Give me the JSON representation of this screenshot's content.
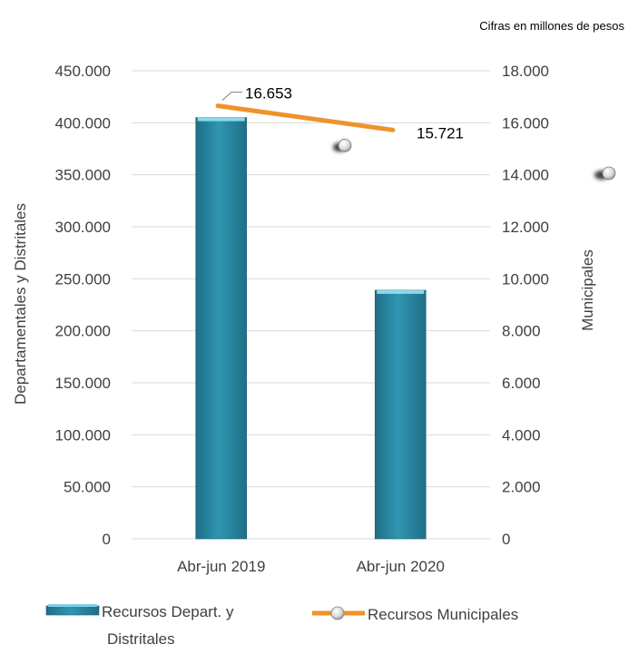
{
  "note": "Cifras en millones de pesos",
  "chart_data": {
    "type": "bar",
    "categories": [
      "Abr-jun 2019",
      "Abr-jun 2020"
    ],
    "series": [
      {
        "name": "Recursos Depart. y Distritales",
        "type": "bar",
        "axis": "left",
        "values": [
          405000,
          239000
        ],
        "color": "#2E8BA5"
      },
      {
        "name": "Recursos Municipales",
        "type": "line",
        "axis": "right",
        "values": [
          16653,
          15721
        ],
        "labels": [
          "16.653",
          "15.721"
        ],
        "color": "#F0922B"
      }
    ],
    "left_axis": {
      "label": "Departamentales y Distritales",
      "range": [
        0,
        450000
      ],
      "ticks": [
        "0",
        "50.000",
        "100.000",
        "150.000",
        "200.000",
        "250.000",
        "300.000",
        "350.000",
        "400.000",
        "450.000"
      ]
    },
    "right_axis": {
      "label": "Municipales",
      "range": [
        0,
        18000
      ],
      "ticks": [
        "0",
        "2.000",
        "4.000",
        "6.000",
        "8.000",
        "10.000",
        "12.000",
        "14.000",
        "16.000",
        "18.000"
      ]
    },
    "legend": {
      "position": "bottom",
      "items": [
        "Recursos Depart. y",
        "Distritales",
        "Recursos Municipales"
      ]
    },
    "grid": true,
    "gridline_color": "#D9D9D9"
  }
}
